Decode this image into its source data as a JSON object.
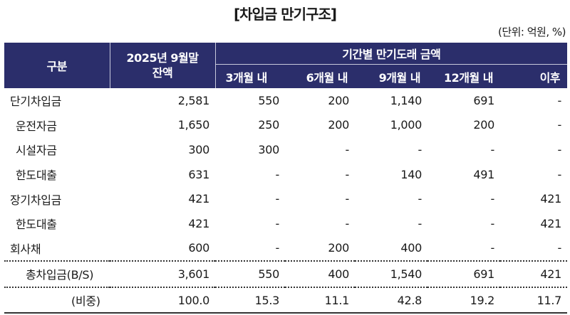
{
  "title": "[차입금 만기구조]",
  "unit": "(단위: 억원, %)",
  "header": {
    "category": "구분",
    "balance_line1": "2025년 9월말",
    "balance_line2": "잔액",
    "group": "기간별 만기도래 금액",
    "periods": [
      "3개월 내",
      "6개월 내",
      "9개월 내",
      "12개월 내",
      "이후"
    ]
  },
  "colors": {
    "header_bg": "#2b2e6b",
    "header_text": "#ffffff"
  },
  "rows": [
    {
      "label": "단기차입금",
      "level": 0,
      "values": [
        "2,581",
        "550",
        "200",
        "1,140",
        "691",
        "-"
      ]
    },
    {
      "label": "운전자금",
      "level": 1,
      "values": [
        "1,650",
        "250",
        "200",
        "1,000",
        "200",
        "-"
      ]
    },
    {
      "label": "시설자금",
      "level": 1,
      "values": [
        "300",
        "300",
        "-",
        "-",
        "-",
        "-"
      ]
    },
    {
      "label": "한도대출",
      "level": 1,
      "values": [
        "631",
        "-",
        "-",
        "140",
        "491",
        "-"
      ]
    },
    {
      "label": "장기차입금",
      "level": 0,
      "values": [
        "421",
        "-",
        "-",
        "-",
        "-",
        "421"
      ]
    },
    {
      "label": "한도대출",
      "level": 1,
      "values": [
        "421",
        "-",
        "-",
        "-",
        "-",
        "421"
      ]
    },
    {
      "label": "회사채",
      "level": 0,
      "values": [
        "600",
        "-",
        "200",
        "400",
        "-",
        "-"
      ]
    }
  ],
  "total": {
    "label": "총차입금(B/S)",
    "values": [
      "3,601",
      "550",
      "400",
      "1,540",
      "691",
      "421"
    ]
  },
  "ratio": {
    "label": "(비중)",
    "values": [
      "100.0",
      "15.3",
      "11.1",
      "42.8",
      "19.2",
      "11.7"
    ]
  }
}
